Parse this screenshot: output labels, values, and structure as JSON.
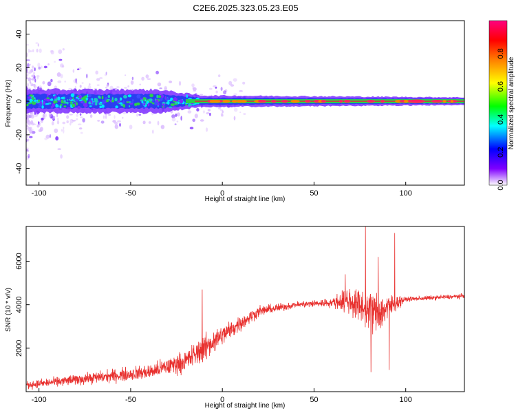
{
  "title": "C2E6.2025.323.05.23.E05",
  "colors": {
    "snr_line": "#e8302e",
    "ridge_core": "#e8203a",
    "ridge_mid": "#2bd04c",
    "ridge_outer": "#2a3ef0",
    "noise_purple": "#7a2bff",
    "noise_light": "#d9b8ff"
  },
  "chart_data": [
    {
      "type": "heatmap",
      "name": "spectrogram",
      "xlabel": "Height of straight line (km)",
      "ylabel": "Frequency (Hz)",
      "xlim": [
        -107,
        132
      ],
      "ylim": [
        -50,
        48
      ],
      "xticks": [
        "-100",
        "-50",
        "0",
        "50",
        "100"
      ],
      "xtick_values": [
        -100,
        -50,
        0,
        50,
        100
      ],
      "yticks": [
        "40",
        "20",
        "0",
        "-20",
        "-40"
      ],
      "ytick_values": [
        40,
        20,
        0,
        -20,
        -40
      ],
      "ridge_frequency_hz": 0,
      "ridge_halfwidth_hz": [
        {
          "x": -107,
          "w": 6
        },
        {
          "x": -35,
          "w": 6
        },
        {
          "x": -12,
          "w": 3
        },
        {
          "x": 132,
          "w": 2
        }
      ],
      "grid": false
    },
    {
      "type": "colorbar",
      "name": "amplitude-colorbar",
      "label": "Normalized spectral amplitude",
      "range": [
        0,
        1
      ],
      "ticks": [
        "0.0",
        "0.2",
        "0.4",
        "0.6",
        "0.8"
      ],
      "tick_values": [
        0.0,
        0.2,
        0.4,
        0.6,
        0.8
      ],
      "colormap": [
        "#ffffff",
        "#7f00ff",
        "#0000ff",
        "#00ffff",
        "#00ff00",
        "#ffff00",
        "#ff8000",
        "#ff0000",
        "#ff0080"
      ]
    },
    {
      "type": "line",
      "name": "snr-line",
      "xlabel": "Height of straight line (km)",
      "ylabel": "SNR (10 * v/v)",
      "xlim": [
        -107,
        132
      ],
      "ylim": [
        0,
        7600
      ],
      "xticks": [
        "-100",
        "-50",
        "0",
        "50",
        "100"
      ],
      "xtick_values": [
        -100,
        -50,
        0,
        50,
        100
      ],
      "yticks": [
        "2000",
        "4000",
        "6000"
      ],
      "ytick_values": [
        2000,
        4000,
        6000
      ],
      "envelope": [
        {
          "x": -107,
          "mean": 300,
          "noise": 250
        },
        {
          "x": -80,
          "mean": 550,
          "noise": 350
        },
        {
          "x": -40,
          "mean": 900,
          "noise": 500
        },
        {
          "x": -20,
          "mean": 1400,
          "noise": 700
        },
        {
          "x": -10,
          "mean": 2000,
          "noise": 900
        },
        {
          "x": 0,
          "mean": 2600,
          "noise": 700
        },
        {
          "x": 20,
          "mean": 3700,
          "noise": 350
        },
        {
          "x": 40,
          "mean": 4000,
          "noise": 200
        },
        {
          "x": 60,
          "mean": 4100,
          "noise": 300
        },
        {
          "x": 68,
          "mean": 4200,
          "noise": 900
        },
        {
          "x": 85,
          "mean": 3600,
          "noise": 1400
        },
        {
          "x": 95,
          "mean": 4100,
          "noise": 500
        },
        {
          "x": 100,
          "mean": 4250,
          "noise": 150
        },
        {
          "x": 132,
          "mean": 4400,
          "noise": 150
        }
      ],
      "spikes": [
        {
          "x": -11,
          "y": 4700
        },
        {
          "x": 67,
          "y": 5400
        },
        {
          "x": 78,
          "y": 7600
        },
        {
          "x": 81,
          "y": 900
        },
        {
          "x": 85,
          "y": 6200
        },
        {
          "x": 91,
          "y": 1000
        },
        {
          "x": 94,
          "y": 7300
        }
      ],
      "grid": false
    }
  ]
}
